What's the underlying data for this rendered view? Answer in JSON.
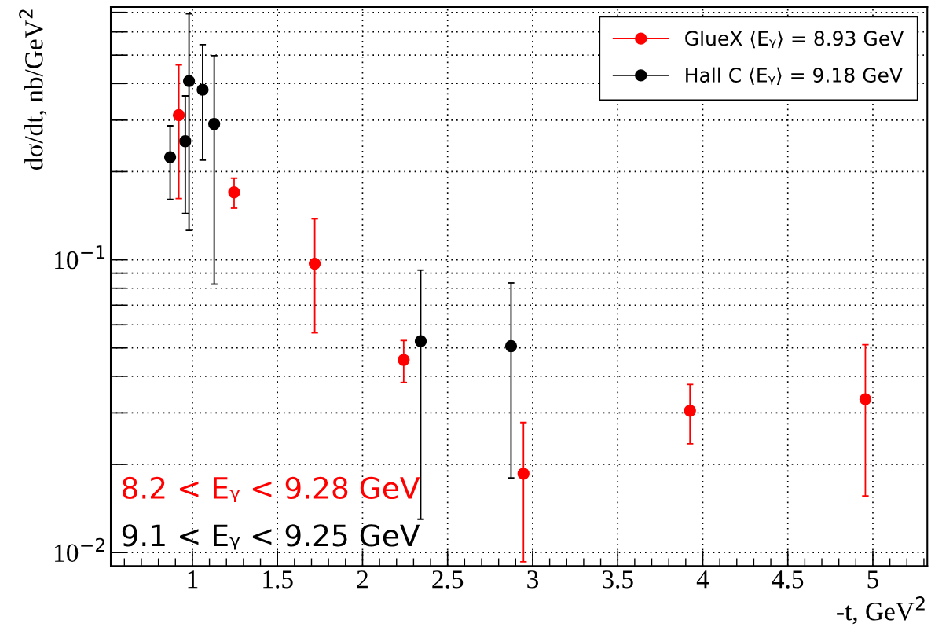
{
  "chart_data": {
    "type": "scatter",
    "xlabel": "-t, GeV$^{2}$",
    "ylabel": "dσ/dt, nb/GeV$^{2}$",
    "series": [
      {
        "name": "GlueX ⟨Eᵧ⟩ = 8.93 GeV",
        "color": "#ff0000",
        "x": [
          0.92,
          1.245,
          1.719,
          2.242,
          2.946,
          3.925,
          4.956
        ],
        "values": [
          0.312,
          0.17,
          0.097,
          0.0455,
          0.0186,
          0.0305,
          0.0334
        ],
        "errors": [
          [
            0.162,
            0.463
          ],
          [
            0.15,
            0.19
          ],
          [
            0.0563,
            0.138
          ],
          [
            0.0381,
            0.053
          ],
          [
            0.0093,
            0.0278
          ],
          [
            0.0235,
            0.0375
          ],
          [
            0.0156,
            0.0513
          ]
        ]
      },
      {
        "name": "Hall C ⟨Eᵧ⟩ = 9.18 GeV",
        "color": "#000000",
        "x": [
          0.869,
          0.958,
          0.98,
          1.06,
          1.128,
          2.342,
          2.873
        ],
        "values": [
          0.224,
          0.254,
          0.408,
          0.381,
          0.291,
          0.0527,
          0.0507
        ],
        "errors": [
          [
            0.161,
            0.287
          ],
          [
            0.144,
            0.363
          ],
          [
            0.126,
            0.692
          ],
          [
            0.219,
            0.543
          ],
          [
            0.0826,
            0.498
          ],
          [
            0.013,
            0.0922
          ],
          [
            0.018,
            0.0834
          ]
        ]
      }
    ],
    "annotations": [
      "8.2 < Eᵧ < 9.28 GeV",
      "9.1 < Eᵧ < 9.25 GeV"
    ],
    "log": "y",
    "xlim": [
      0.52,
      5.32
    ],
    "xticks": [
      1,
      1.5,
      2,
      2.5,
      3,
      3.5,
      4,
      4.5,
      5
    ],
    "ylim": [
      0.009,
      0.73
    ],
    "yticks": [
      {
        "value": 0.01,
        "label": "10$^{−2}$"
      },
      {
        "value": 0.02,
        "label": null
      },
      {
        "value": 0.03,
        "label": null
      },
      {
        "value": 0.04,
        "label": null
      },
      {
        "value": 0.05,
        "label": null
      },
      {
        "value": 0.06,
        "label": null
      },
      {
        "value": 0.07,
        "label": null
      },
      {
        "value": 0.08,
        "label": null
      },
      {
        "value": 0.09,
        "label": null
      },
      {
        "value": 0.1,
        "label": "10$^{−1}$"
      },
      {
        "value": 0.2,
        "label": null
      },
      {
        "value": 0.3,
        "label": null
      },
      {
        "value": 0.4,
        "label": null
      },
      {
        "value": 0.5,
        "label": null
      },
      {
        "value": 0.6,
        "label": null
      },
      {
        "value": 0.7,
        "label": null
      }
    ],
    "grid": true,
    "legend": "top right",
    "marker": "circle"
  }
}
